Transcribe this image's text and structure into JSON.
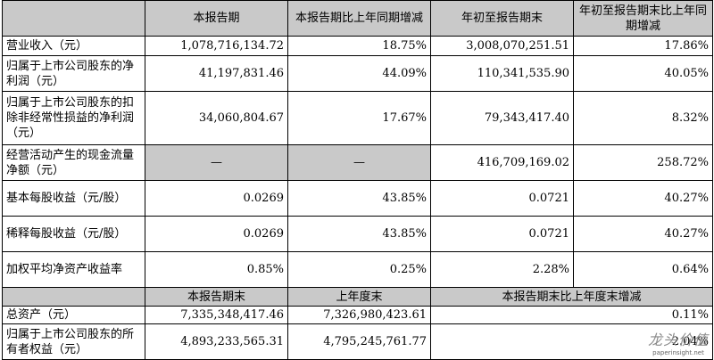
{
  "header": {
    "c1": "本报告期",
    "c2": "本报告期比上年同期增减",
    "c3": "年初至报告期末",
    "c4": "年初至报告期末比上年同期增减"
  },
  "rows": [
    {
      "label": "营业收入（元）",
      "v1": "1,078,716,134.72",
      "v2": "18.75%",
      "v3": "3,008,070,251.51",
      "v4": "17.86%"
    },
    {
      "label": "归属于上市公司股东的净利润（元）",
      "v1": "41,197,831.46",
      "v2": "44.09%",
      "v3": "110,341,535.90",
      "v4": "40.05%"
    },
    {
      "label": "归属于上市公司股东的扣除非经常性损益的净利润（元）",
      "v1": "34,060,804.67",
      "v2": "17.67%",
      "v3": "79,343,417.40",
      "v4": "8.32%"
    },
    {
      "label": "经营活动产生的现金流量净额（元）",
      "v1": "—",
      "v2": "—",
      "v3": "416,709,169.02",
      "v4": "258.72%"
    },
    {
      "label": "基本每股收益（元/股）",
      "v1": "0.0269",
      "v2": "43.85%",
      "v3": "0.0721",
      "v4": "40.27%"
    },
    {
      "label": "稀释每股收益（元/股）",
      "v1": "0.0269",
      "v2": "43.85%",
      "v3": "0.0721",
      "v4": "40.27%"
    },
    {
      "label": "加权平均净资产收益率",
      "v1": "0.85%",
      "v2": "0.25%",
      "v3": "2.28%",
      "v4": "0.64%"
    }
  ],
  "header2": {
    "c1": "本报告期末",
    "c2": "上年度末",
    "c3": "本报告期末比上年度末增减"
  },
  "rows2": [
    {
      "label": "总资产（元）",
      "v1": "7,335,348,417.46",
      "v2": "7,326,980,423.61",
      "v3": "0.11%"
    },
    {
      "label": "归属于上市公司股东的所有者权益（元）",
      "v1": "4,893,233,565.31",
      "v2": "4,795,245,761.77",
      "v3": "2.04%"
    }
  ],
  "watermark": {
    "text": "龙头价值",
    "sub": "paperinsight.net"
  }
}
